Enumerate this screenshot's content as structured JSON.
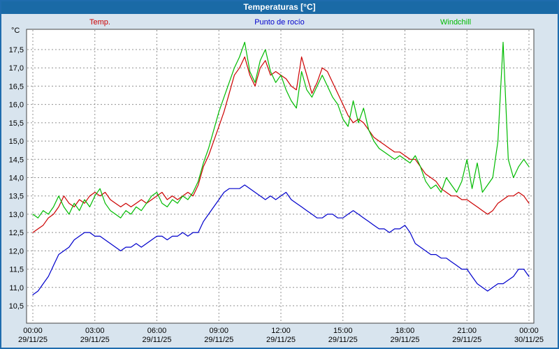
{
  "window": {
    "title": "Temperaturas [°C]"
  },
  "axis_unit": "°C",
  "colors": {
    "titlebar": "#1a6aa6",
    "background": "#d8e4ee",
    "border": "#1f6cae",
    "grid": "#909090",
    "plot_background": "#ffffff"
  },
  "chart_data": {
    "type": "line",
    "title": "Temperaturas [°C]",
    "xlabel": "",
    "ylabel": "°C",
    "ylim": [
      10.5,
      17.5
    ],
    "xlim_hours": [
      0,
      24
    ],
    "grid": true,
    "legend_position": "top",
    "dt": 0.25,
    "y_ticks": [
      {
        "value": 17.5,
        "label": "17,5"
      },
      {
        "value": 17.0,
        "label": "17,0"
      },
      {
        "value": 16.5,
        "label": "16,5"
      },
      {
        "value": 16.0,
        "label": "16,0"
      },
      {
        "value": 15.5,
        "label": "15,5"
      },
      {
        "value": 15.0,
        "label": "15,0"
      },
      {
        "value": 14.5,
        "label": "14,5"
      },
      {
        "value": 14.0,
        "label": "14,0"
      },
      {
        "value": 13.5,
        "label": "13,5"
      },
      {
        "value": 13.0,
        "label": "13,0"
      },
      {
        "value": 12.5,
        "label": "12,5"
      },
      {
        "value": 12.0,
        "label": "12,0"
      },
      {
        "value": 11.5,
        "label": "11,5"
      },
      {
        "value": 11.0,
        "label": "11,0"
      },
      {
        "value": 10.5,
        "label": "10,5"
      }
    ],
    "x_ticks": [
      {
        "t": 0,
        "time": "00:00",
        "date": "29/11/25"
      },
      {
        "t": 3,
        "time": "03:00",
        "date": "29/11/25"
      },
      {
        "t": 6,
        "time": "06:00",
        "date": "29/11/25"
      },
      {
        "t": 9,
        "time": "09:00",
        "date": "29/11/25"
      },
      {
        "t": 12,
        "time": "12:00",
        "date": "29/11/25"
      },
      {
        "t": 15,
        "time": "15:00",
        "date": "29/11/25"
      },
      {
        "t": 18,
        "time": "18:00",
        "date": "29/11/25"
      },
      {
        "t": 21,
        "time": "21:00",
        "date": "29/11/25"
      },
      {
        "t": 24,
        "time": "00:00",
        "date": "30/11/25"
      }
    ],
    "series": [
      {
        "name": "Temp.",
        "color": "#cc0000",
        "values": [
          12.5,
          12.6,
          12.7,
          12.9,
          13.0,
          13.2,
          13.5,
          13.3,
          13.2,
          13.4,
          13.3,
          13.5,
          13.6,
          13.5,
          13.6,
          13.4,
          13.3,
          13.2,
          13.3,
          13.2,
          13.3,
          13.4,
          13.3,
          13.4,
          13.5,
          13.6,
          13.4,
          13.5,
          13.4,
          13.5,
          13.6,
          13.5,
          13.8,
          14.3,
          14.6,
          15.0,
          15.4,
          15.8,
          16.3,
          16.8,
          17.0,
          17.3,
          16.8,
          16.5,
          17.0,
          17.2,
          16.8,
          16.9,
          16.8,
          16.7,
          16.5,
          16.4,
          17.3,
          16.8,
          16.3,
          16.6,
          17.0,
          16.9,
          16.6,
          16.3,
          16.0,
          15.7,
          15.5,
          15.6,
          15.5,
          15.3,
          15.1,
          15.0,
          14.9,
          14.8,
          14.7,
          14.7,
          14.6,
          14.5,
          14.5,
          14.3,
          14.1,
          14.0,
          13.9,
          13.7,
          13.6,
          13.5,
          13.5,
          13.4,
          13.4,
          13.3,
          13.2,
          13.1,
          13.0,
          13.1,
          13.3,
          13.4,
          13.5,
          13.5,
          13.6,
          13.5,
          13.3
        ]
      },
      {
        "name": "Punto de rocío",
        "color": "#0000cc",
        "values": [
          10.8,
          10.9,
          11.1,
          11.3,
          11.6,
          11.9,
          12.0,
          12.1,
          12.3,
          12.4,
          12.5,
          12.5,
          12.4,
          12.4,
          12.3,
          12.2,
          12.1,
          12.0,
          12.1,
          12.1,
          12.2,
          12.1,
          12.2,
          12.3,
          12.4,
          12.4,
          12.3,
          12.4,
          12.4,
          12.5,
          12.4,
          12.5,
          12.5,
          12.8,
          13.0,
          13.2,
          13.4,
          13.6,
          13.7,
          13.7,
          13.7,
          13.8,
          13.7,
          13.6,
          13.5,
          13.4,
          13.5,
          13.4,
          13.5,
          13.6,
          13.4,
          13.3,
          13.2,
          13.1,
          13.0,
          12.9,
          12.9,
          13.0,
          13.0,
          12.9,
          12.9,
          13.0,
          13.1,
          13.0,
          12.9,
          12.8,
          12.7,
          12.6,
          12.6,
          12.5,
          12.6,
          12.6,
          12.7,
          12.5,
          12.2,
          12.1,
          12.0,
          11.9,
          11.9,
          11.8,
          11.8,
          11.7,
          11.6,
          11.5,
          11.5,
          11.3,
          11.1,
          11.0,
          10.9,
          11.0,
          11.1,
          11.1,
          11.2,
          11.3,
          11.5,
          11.5,
          11.3
        ]
      },
      {
        "name": "Windchill",
        "color": "#00bb00",
        "values": [
          13.0,
          12.9,
          13.1,
          13.0,
          13.2,
          13.5,
          13.2,
          13.0,
          13.3,
          13.1,
          13.4,
          13.2,
          13.5,
          13.7,
          13.3,
          13.1,
          13.0,
          12.9,
          13.1,
          13.0,
          13.2,
          13.1,
          13.3,
          13.5,
          13.6,
          13.3,
          13.2,
          13.4,
          13.3,
          13.5,
          13.4,
          13.6,
          13.9,
          14.4,
          14.8,
          15.3,
          15.8,
          16.2,
          16.6,
          17.0,
          17.3,
          17.7,
          16.9,
          16.6,
          17.2,
          17.5,
          16.9,
          16.6,
          16.8,
          16.4,
          16.1,
          15.9,
          16.9,
          16.4,
          16.2,
          16.5,
          16.8,
          16.5,
          16.2,
          16.0,
          15.6,
          15.4,
          16.1,
          15.5,
          15.9,
          15.3,
          15.0,
          14.8,
          14.7,
          14.6,
          14.5,
          14.6,
          14.5,
          14.4,
          14.6,
          14.3,
          13.9,
          13.7,
          13.8,
          13.6,
          14.0,
          13.8,
          13.6,
          13.9,
          14.5,
          13.7,
          14.4,
          13.6,
          13.8,
          14.0,
          15.0,
          17.7,
          14.5,
          14.0,
          14.3,
          14.5,
          14.3
        ]
      }
    ]
  }
}
